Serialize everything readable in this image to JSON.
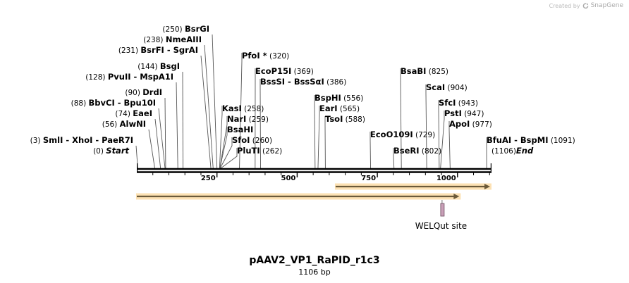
{
  "credit": {
    "prefix": "Created by",
    "brand": "SnapGene"
  },
  "plasmid": {
    "name": "pAAV2_VP1_RaPID_r1c3",
    "size_label": "1106 bp",
    "length": 1106
  },
  "ruler": {
    "ticks": [
      250,
      500,
      750,
      1000
    ]
  },
  "sequence_ends": [
    {
      "position": 0,
      "pos_label": "(0)",
      "name": "Start"
    },
    {
      "position": 1106,
      "pos_label": "(1106)",
      "name": "End"
    }
  ],
  "enzymes": [
    {
      "id": "smli",
      "names": [
        "SmlI",
        "XhoI",
        "PaeR7I"
      ],
      "position": 3,
      "pos_label": "(3)",
      "side": "right"
    },
    {
      "id": "alwni",
      "names": [
        "AlwNI"
      ],
      "position": 56,
      "pos_label": "(56)",
      "side": "right"
    },
    {
      "id": "eaei",
      "names": [
        "EaeI"
      ],
      "position": 74,
      "pos_label": "(74)",
      "side": "right"
    },
    {
      "id": "bbvci",
      "names": [
        "BbvCI",
        "Bpu10I"
      ],
      "position": 88,
      "pos_label": "(88)",
      "side": "right"
    },
    {
      "id": "drdi",
      "names": [
        "DrdI"
      ],
      "position": 90,
      "pos_label": "(90)",
      "side": "right"
    },
    {
      "id": "pvuii",
      "names": [
        "PvuII",
        "MspA1I"
      ],
      "position": 128,
      "pos_label": "(128)",
      "side": "right"
    },
    {
      "id": "bsgi",
      "names": [
        "BsgI"
      ],
      "position": 144,
      "pos_label": "(144)",
      "side": "right"
    },
    {
      "id": "bsrfi",
      "names": [
        "BsrFI",
        "SgrAI"
      ],
      "position": 231,
      "pos_label": "(231)",
      "side": "right"
    },
    {
      "id": "nmeaiii",
      "names": [
        "NmeAIII"
      ],
      "position": 238,
      "pos_label": "(238)",
      "side": "right"
    },
    {
      "id": "bsrgi",
      "names": [
        "BsrGI"
      ],
      "position": 250,
      "pos_label": "(250)",
      "side": "right"
    },
    {
      "id": "kasi",
      "names": [
        "KasI"
      ],
      "position": 258,
      "pos_label": "(258)",
      "side": "left"
    },
    {
      "id": "nari",
      "names": [
        "NarI"
      ],
      "position": 259,
      "pos_label": "(259)",
      "side": "left"
    },
    {
      "id": "bsahi",
      "names": [
        "BsaHI"
      ],
      "position": 259,
      "pos_label": "",
      "side": "left"
    },
    {
      "id": "sfoi",
      "names": [
        "SfoI"
      ],
      "position": 260,
      "pos_label": "(260)",
      "side": "left"
    },
    {
      "id": "pluti",
      "names": [
        "PluTI"
      ],
      "position": 262,
      "pos_label": "(262)",
      "side": "left"
    },
    {
      "id": "pfoi",
      "names": [
        "PfoI *"
      ],
      "position": 320,
      "pos_label": "(320)",
      "side": "left"
    },
    {
      "id": "ecop15i",
      "names": [
        "EcoP15I"
      ],
      "position": 369,
      "pos_label": "(369)",
      "side": "left"
    },
    {
      "id": "bsssi",
      "names": [
        "BssSI",
        "BssSαI"
      ],
      "position": 386,
      "pos_label": "(386)",
      "side": "left"
    },
    {
      "id": "bsphi",
      "names": [
        "BspHI"
      ],
      "position": 556,
      "pos_label": "(556)",
      "side": "left"
    },
    {
      "id": "eari",
      "names": [
        "EarI"
      ],
      "position": 565,
      "pos_label": "(565)",
      "side": "left"
    },
    {
      "id": "tsoi",
      "names": [
        "TsoI"
      ],
      "position": 588,
      "pos_label": "(588)",
      "side": "left"
    },
    {
      "id": "eco0109i",
      "names": [
        "EcoO109I"
      ],
      "position": 729,
      "pos_label": "(729)",
      "side": "left"
    },
    {
      "id": "bseri",
      "names": [
        "BseRI"
      ],
      "position": 802,
      "pos_label": "(802)",
      "side": "left"
    },
    {
      "id": "bsabi",
      "names": [
        "BsaBI"
      ],
      "position": 825,
      "pos_label": "(825)",
      "side": "left"
    },
    {
      "id": "scai",
      "names": [
        "ScaI"
      ],
      "position": 904,
      "pos_label": "(904)",
      "side": "left"
    },
    {
      "id": "sfci",
      "names": [
        "SfcI"
      ],
      "position": 943,
      "pos_label": "(943)",
      "side": "left"
    },
    {
      "id": "psti",
      "names": [
        "PstI"
      ],
      "position": 947,
      "pos_label": "(947)",
      "side": "left"
    },
    {
      "id": "apoi",
      "names": [
        "ApoI"
      ],
      "position": 977,
      "pos_label": "(977)",
      "side": "left"
    },
    {
      "id": "bfuai",
      "names": [
        "BfuAI",
        "BspMI"
      ],
      "position": 1091,
      "pos_label": "(1091)",
      "side": "left"
    }
  ],
  "features": [
    {
      "id": "arrow-upper",
      "start": 620,
      "end": 1106,
      "direction": "forward",
      "color": "#f5a623"
    },
    {
      "id": "arrow-lower",
      "start": 0,
      "end": 1010,
      "direction": "forward",
      "color": "#f5a623"
    },
    {
      "id": "welqut",
      "label": "WELQut site",
      "position": 953,
      "color": "#c9a0b8"
    }
  ],
  "colors": {
    "backbone": "#000000",
    "feature_fill": "#f5a623",
    "feature_glow": "#fbd79a",
    "site_fill": "#c9a0b8"
  }
}
